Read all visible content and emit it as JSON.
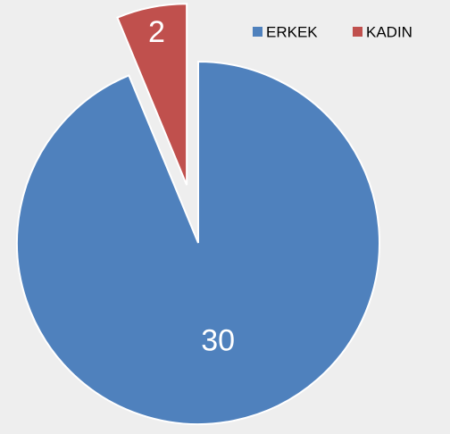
{
  "chart_data": {
    "type": "pie",
    "categories": [
      "ERKEK",
      "KADIN"
    ],
    "values": [
      30,
      2
    ],
    "colors": [
      "#4f81bd",
      "#c0504d"
    ],
    "explode": [
      false,
      true
    ],
    "legend": "top-right"
  }
}
